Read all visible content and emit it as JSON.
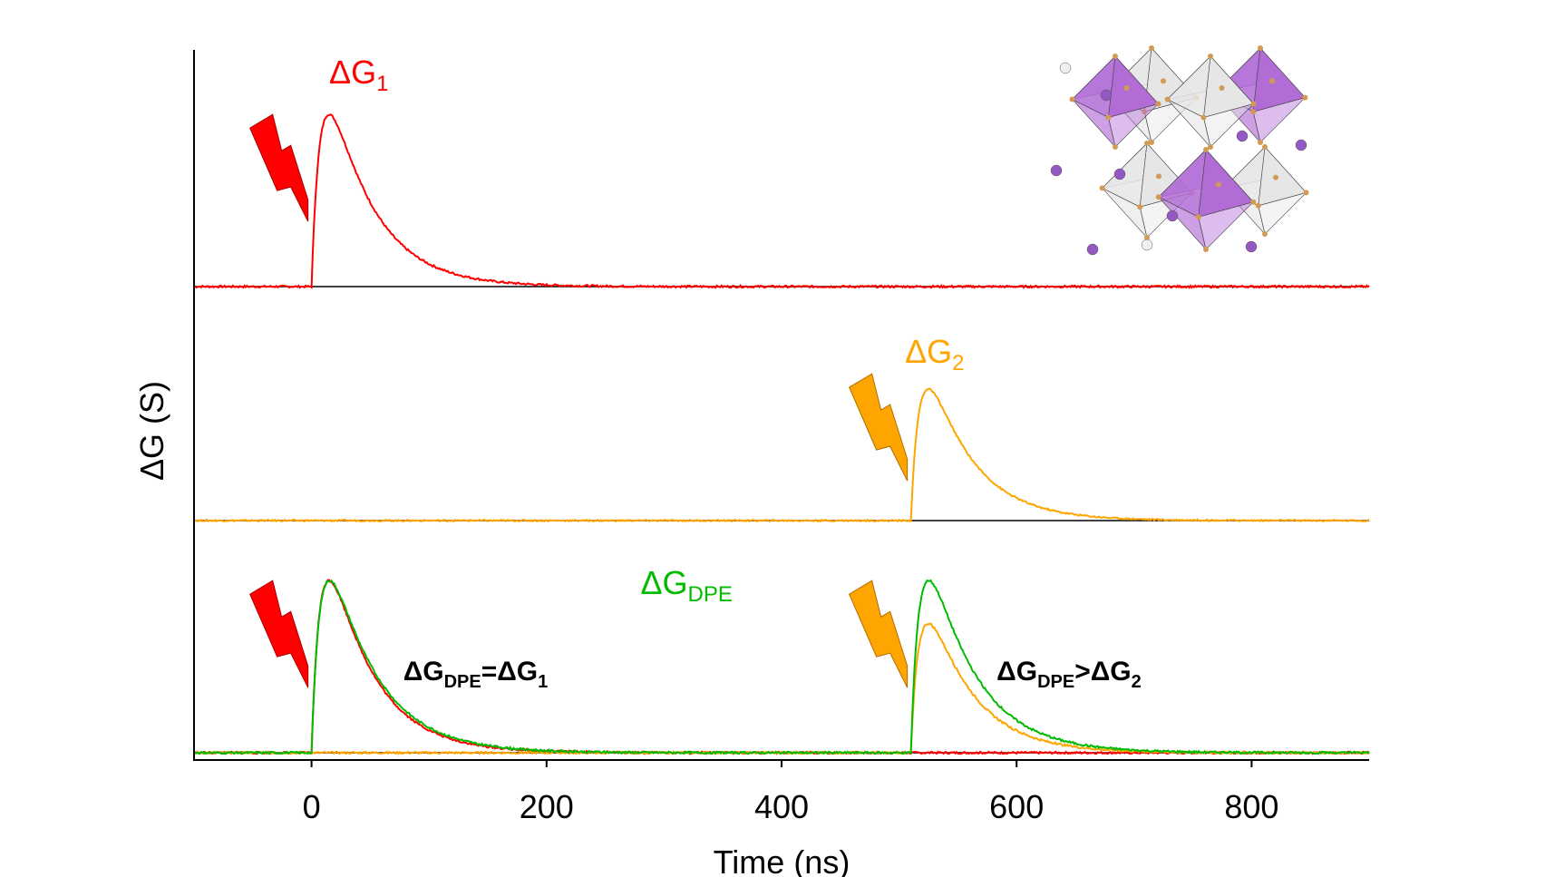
{
  "chart_data": {
    "type": "line",
    "title": "",
    "xlabel": "Time (ns)",
    "ylabel": "ΔG (S)",
    "xlim": [
      -100,
      900
    ],
    "xticks": [
      0,
      200,
      400,
      600,
      800
    ],
    "xtick_labels": [
      "0",
      "200",
      "400",
      "600",
      "800"
    ],
    "yticks": [],
    "grid": false,
    "legend": "none",
    "panels": [
      {
        "id": "top",
        "series": [
          {
            "name": "ΔG1",
            "color": "#ff0000",
            "pulse_time": 0,
            "peak": 1.0,
            "rise_ns": 9,
            "decay_ns": 38
          }
        ],
        "labels": [
          {
            "text": "ΔG",
            "sub": "1",
            "color": "#ff0000",
            "x": 15,
            "y": 1.18,
            "bold": false
          }
        ],
        "flashes": [
          {
            "x": -20,
            "color": "#ff0000"
          }
        ]
      },
      {
        "id": "middle",
        "series": [
          {
            "name": "ΔG2",
            "color": "#ffa500",
            "pulse_time": 510,
            "peak": 1.0,
            "rise_ns": 9,
            "decay_ns": 38
          }
        ],
        "labels": [
          {
            "text": "ΔG",
            "sub": "2",
            "color": "#ffa500",
            "x": 505,
            "y": 1.2,
            "bold": false
          }
        ],
        "flashes": [
          {
            "x": 490,
            "color": "#ffa500"
          }
        ]
      },
      {
        "id": "bottom",
        "series": [
          {
            "name": "ΔG1",
            "color": "#ff0000",
            "pulse_time": 0,
            "peak": 1.0,
            "rise_ns": 9,
            "decay_ns": 38
          },
          {
            "name": "ΔG2",
            "color": "#ffa500",
            "pulse_time": 510,
            "peak": 0.75,
            "rise_ns": 9,
            "decay_ns": 38
          },
          {
            "name": "ΔGDPE",
            "color": "#00bb00",
            "pulse_time": [
              0,
              510
            ],
            "peak": [
              1.0,
              1.0
            ],
            "rise_ns": 9,
            "decay_ns": 40
          }
        ],
        "labels": [
          {
            "text": "ΔG",
            "sub": "DPE",
            "color": "#00bb00",
            "x": 280,
            "y": 0.92,
            "bold": false
          },
          {
            "text": "ΔG",
            "sub": "DPE",
            "suffix": "=ΔG",
            "suffix_sub": "1",
            "color": "#000000",
            "x": 78,
            "y": 0.42,
            "bold": true
          },
          {
            "text": "ΔG",
            "sub": "DPE",
            "suffix": ">ΔG",
            "suffix_sub": "2",
            "color": "#000000",
            "x": 583,
            "y": 0.42,
            "bold": true
          }
        ],
        "flashes": [
          {
            "x": -20,
            "color": "#ff0000"
          },
          {
            "x": 490,
            "color": "#ffa500"
          }
        ]
      }
    ]
  },
  "inset": {
    "octahedron_colors": [
      "#b26cd6",
      "#e6e6e6"
    ],
    "atom_colors": [
      "#9458c2",
      "#f0f0f0",
      "#d39a54"
    ]
  }
}
